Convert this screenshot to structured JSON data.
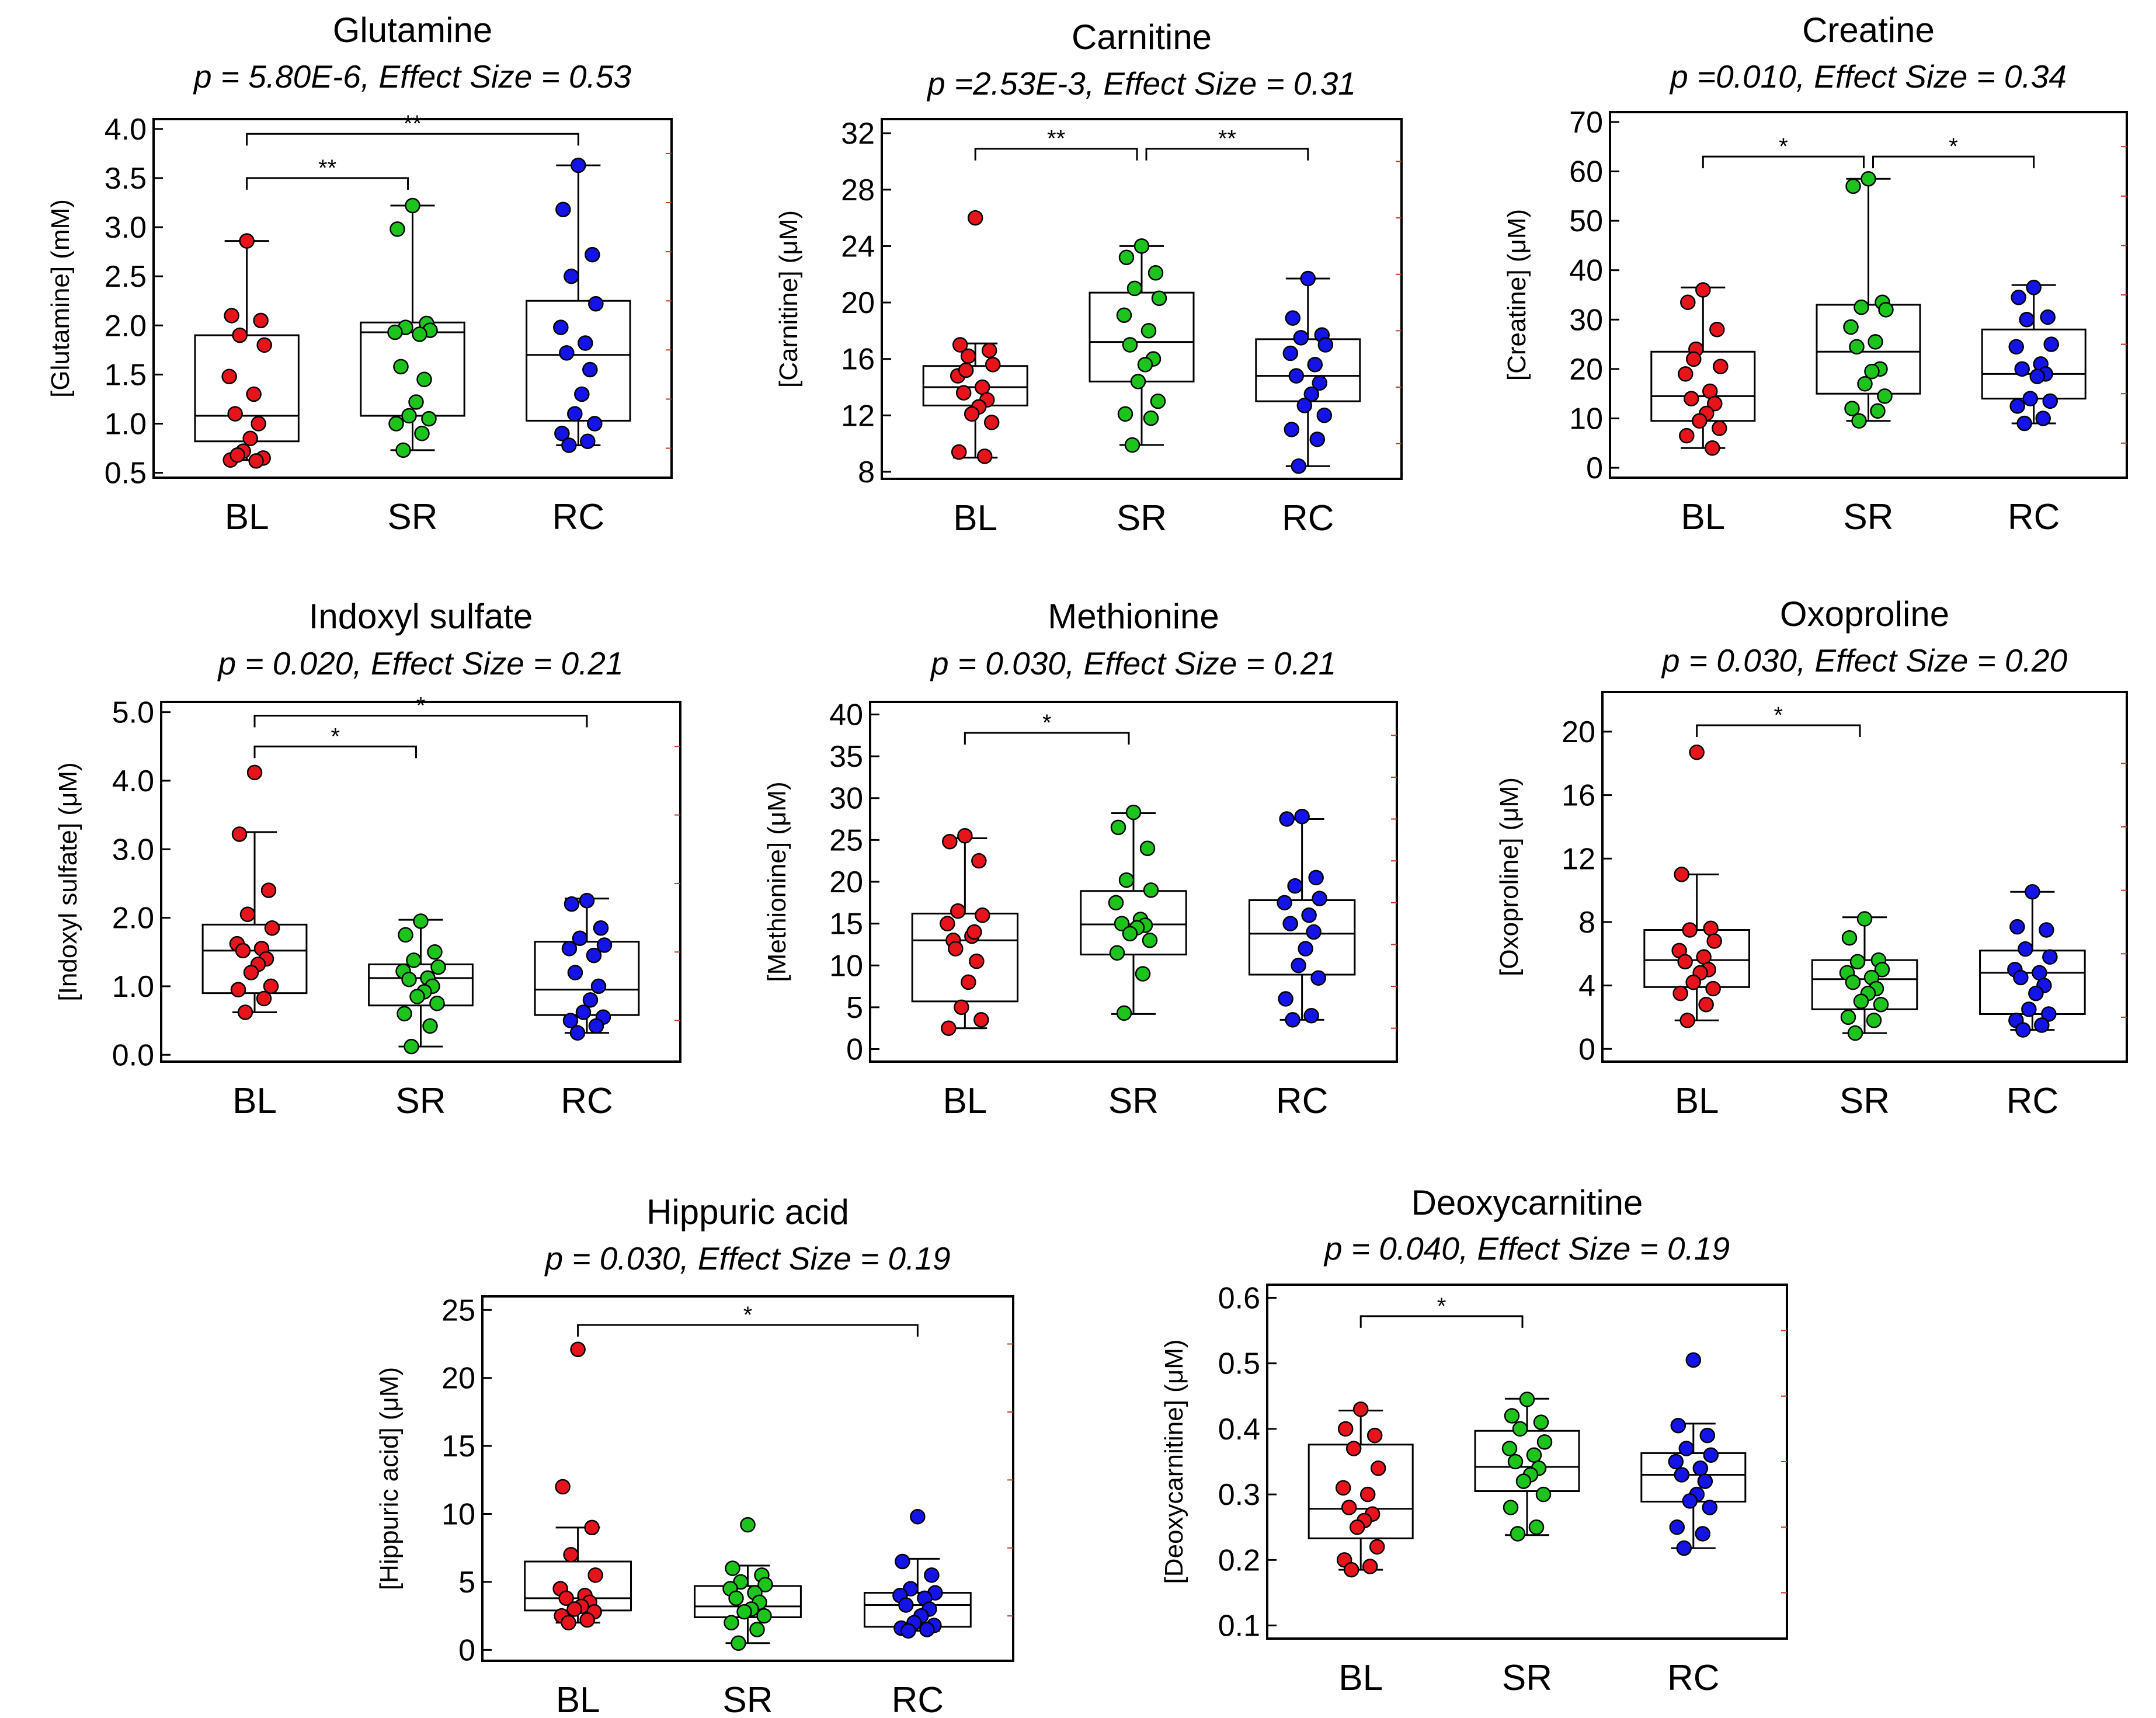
{
  "colors": {
    "BL": "#e8141c",
    "SR": "#1cc41c",
    "RC": "#1414e8"
  },
  "chart_data": [
    {
      "type": "box",
      "title": "Glutamine",
      "subtitle": "p = 5.80E-6, Effect Size = 0.53",
      "ylabel": "[Glutamine] (mM)",
      "categories": [
        "BL",
        "SR",
        "RC"
      ],
      "ylim": [
        0.45,
        4.1
      ],
      "yticks": [
        0.5,
        1.0,
        1.5,
        2.0,
        2.5,
        3.0,
        3.5,
        4.0
      ],
      "ytick_labels": [
        "0.5",
        "1.0",
        "1.5",
        "2.0",
        "2.5",
        "3.0",
        "3.5",
        "4.0"
      ],
      "boxes": [
        {
          "min": 0.63,
          "q1": 0.82,
          "median": 1.08,
          "q3": 1.9,
          "max": 2.86
        },
        {
          "min": 0.73,
          "q1": 1.08,
          "median": 1.93,
          "q3": 2.03,
          "max": 3.22
        },
        {
          "min": 0.78,
          "q1": 1.03,
          "median": 1.7,
          "q3": 2.25,
          "max": 3.63
        }
      ],
      "points": [
        [
          2.86,
          2.1,
          2.05,
          1.9,
          1.8,
          1.48,
          1.3,
          1.1,
          1.0,
          0.85,
          0.72,
          0.65,
          0.63,
          0.62,
          0.68
        ],
        [
          3.22,
          2.98,
          2.02,
          1.98,
          1.95,
          1.93,
          1.91,
          1.58,
          1.45,
          1.22,
          1.08,
          1.05,
          1.0,
          0.9,
          0.73
        ],
        [
          3.63,
          3.18,
          2.72,
          2.5,
          2.22,
          1.98,
          1.82,
          1.72,
          1.55,
          1.3,
          1.1,
          1.0,
          0.9,
          0.82,
          0.78
        ]
      ],
      "brackets": [
        {
          "from": 0,
          "to": 1,
          "label": "**",
          "y": 3.5
        },
        {
          "from": 0,
          "to": 2,
          "label": "**",
          "y": 3.95
        }
      ]
    },
    {
      "type": "box",
      "title": "Carnitine",
      "subtitle": "p =2.53E-3, Effect Size = 0.31",
      "ylabel": "[Carnitine] (μM)",
      "categories": [
        "BL",
        "SR",
        "RC"
      ],
      "ylim": [
        7.5,
        33.0
      ],
      "yticks": [
        8,
        12,
        16,
        20,
        24,
        28,
        32
      ],
      "ytick_labels": [
        "8",
        "12",
        "16",
        "20",
        "24",
        "28",
        "32"
      ],
      "boxes": [
        {
          "min": 9.0,
          "q1": 12.7,
          "median": 14.0,
          "q3": 15.5,
          "max": 17.1
        },
        {
          "min": 9.9,
          "q1": 14.4,
          "median": 17.2,
          "q3": 20.7,
          "max": 24.0
        },
        {
          "min": 8.4,
          "q1": 13.0,
          "median": 14.8,
          "q3": 17.4,
          "max": 21.7
        }
      ],
      "points": [
        [
          26.0,
          17.0,
          16.6,
          16.2,
          15.6,
          14.8,
          14.0,
          13.6,
          13.1,
          12.6,
          12.1,
          11.5,
          9.4,
          9.1,
          15.2
        ],
        [
          24.0,
          23.2,
          22.1,
          21.0,
          20.3,
          19.1,
          18.0,
          17.0,
          16.0,
          15.6,
          14.4,
          13.0,
          12.1,
          11.8,
          9.9
        ],
        [
          21.7,
          18.9,
          17.7,
          17.5,
          17.0,
          16.4,
          15.6,
          14.8,
          14.3,
          13.5,
          12.7,
          12.0,
          11.0,
          10.3,
          8.4
        ]
      ],
      "brackets": [
        {
          "from": 0,
          "to": 1,
          "label": "**",
          "y": 30.9
        },
        {
          "from": 1,
          "to": 2,
          "label": "**",
          "y": 30.9
        }
      ]
    },
    {
      "type": "box",
      "title": "Creatine",
      "subtitle": "p =0.010, Effect Size = 0.34",
      "ylabel": "[Creatine] (μM)",
      "categories": [
        "BL",
        "SR",
        "RC"
      ],
      "ylim": [
        -2,
        72
      ],
      "yticks": [
        0,
        10,
        20,
        30,
        40,
        50,
        60,
        70
      ],
      "ytick_labels": [
        "0",
        "10",
        "20",
        "30",
        "40",
        "50",
        "60",
        "70"
      ],
      "boxes": [
        {
          "min": 4.0,
          "q1": 9.5,
          "median": 14.5,
          "q3": 23.5,
          "max": 36.5
        },
        {
          "min": 9.5,
          "q1": 15.0,
          "median": 23.5,
          "q3": 33.0,
          "max": 58.5
        },
        {
          "min": 9.0,
          "q1": 14.0,
          "median": 19.0,
          "q3": 28.0,
          "max": 37.0
        }
      ],
      "points": [
        [
          36.0,
          33.5,
          28.0,
          24.0,
          20.5,
          19.0,
          15.5,
          14.0,
          13.0,
          11.0,
          9.5,
          8.0,
          6.5,
          4.0,
          22.0
        ],
        [
          58.5,
          57.0,
          33.5,
          32.5,
          32.0,
          28.5,
          25.5,
          24.5,
          20.0,
          19.5,
          17.0,
          14.5,
          12.0,
          11.5,
          9.5
        ],
        [
          36.5,
          34.5,
          30.5,
          30.0,
          25.0,
          24.5,
          21.0,
          20.0,
          19.0,
          18.5,
          14.0,
          13.5,
          12.5,
          10.0,
          9.0
        ]
      ],
      "brackets": [
        {
          "from": 0,
          "to": 1,
          "label": "*",
          "y": 63.0
        },
        {
          "from": 1,
          "to": 2,
          "label": "*",
          "y": 63.0
        }
      ]
    },
    {
      "type": "box",
      "title": "Indoxyl sulfate",
      "subtitle": "p = 0.020, Effect Size = 0.21",
      "ylabel": "[Indoxyl sulfate] (μM)",
      "categories": [
        "BL",
        "SR",
        "RC"
      ],
      "ylim": [
        -0.1,
        5.15
      ],
      "yticks": [
        0.0,
        1.0,
        2.0,
        3.0,
        4.0,
        5.0
      ],
      "ytick_labels": [
        "0.0",
        "1.0",
        "2.0",
        "3.0",
        "4.0",
        "5.0"
      ],
      "boxes": [
        {
          "min": 0.62,
          "q1": 0.9,
          "median": 1.52,
          "q3": 1.9,
          "max": 3.25
        },
        {
          "min": 0.12,
          "q1": 0.72,
          "median": 1.12,
          "q3": 1.32,
          "max": 1.97
        },
        {
          "min": 0.32,
          "q1": 0.58,
          "median": 0.95,
          "q3": 1.65,
          "max": 2.28
        }
      ],
      "points": [
        [
          4.12,
          3.22,
          2.4,
          2.05,
          1.85,
          1.62,
          1.55,
          1.52,
          1.4,
          1.32,
          1.2,
          1.0,
          0.95,
          0.82,
          0.62
        ],
        [
          1.95,
          1.75,
          1.5,
          1.38,
          1.28,
          1.22,
          1.12,
          1.1,
          1.0,
          0.92,
          0.85,
          0.75,
          0.6,
          0.42,
          0.12
        ],
        [
          2.25,
          2.2,
          1.85,
          1.7,
          1.6,
          1.55,
          1.45,
          1.2,
          1.0,
          0.8,
          0.62,
          0.55,
          0.5,
          0.42,
          0.32
        ]
      ],
      "brackets": [
        {
          "from": 0,
          "to": 1,
          "label": "*",
          "y": 4.5
        },
        {
          "from": 0,
          "to": 2,
          "label": "*",
          "y": 4.95
        }
      ]
    },
    {
      "type": "box",
      "title": "Methionine",
      "subtitle": "p = 0.030, Effect Size = 0.21",
      "ylabel": "[Methionine] (μM)",
      "categories": [
        "BL",
        "SR",
        "RC"
      ],
      "ylim": [
        -1.5,
        41.5
      ],
      "yticks": [
        0,
        5,
        10,
        15,
        20,
        25,
        30,
        35,
        40
      ],
      "ytick_labels": [
        "0",
        "5",
        "10",
        "15",
        "20",
        "25",
        "30",
        "35",
        "40"
      ],
      "boxes": [
        {
          "min": 2.5,
          "q1": 5.7,
          "median": 13.0,
          "q3": 16.2,
          "max": 25.2
        },
        {
          "min": 4.2,
          "q1": 11.3,
          "median": 14.9,
          "q3": 18.9,
          "max": 28.2
        },
        {
          "min": 3.5,
          "q1": 8.9,
          "median": 13.8,
          "q3": 17.8,
          "max": 27.5
        }
      ],
      "points": [
        [
          25.5,
          24.8,
          22.5,
          16.5,
          16.0,
          15.0,
          13.5,
          13.0,
          10.5,
          8.0,
          5.0,
          3.5,
          2.5,
          14.0,
          12.0
        ],
        [
          28.3,
          26.5,
          24.0,
          20.2,
          19.0,
          17.5,
          15.5,
          15.0,
          14.8,
          14.5,
          13.8,
          13.0,
          11.5,
          9.0,
          4.3
        ],
        [
          27.8,
          27.5,
          20.5,
          19.5,
          18.0,
          17.5,
          16.0,
          15.0,
          14.0,
          12.0,
          10.0,
          8.5,
          6.0,
          4.0,
          3.5
        ]
      ],
      "brackets": [
        {
          "from": 0,
          "to": 1,
          "label": "*",
          "y": 37.8
        }
      ]
    },
    {
      "type": "box",
      "title": "Oxoproline",
      "subtitle": "p = 0.030, Effect Size = 0.20",
      "ylabel": "[Oxoproline] (μM)",
      "categories": [
        "BL",
        "SR",
        "RC"
      ],
      "ylim": [
        -0.8,
        22.5
      ],
      "yticks": [
        0,
        4,
        8,
        12,
        16,
        20
      ],
      "ytick_labels": [
        "0",
        "4",
        "8",
        "12",
        "16",
        "20"
      ],
      "boxes": [
        {
          "min": 1.8,
          "q1": 3.9,
          "median": 5.6,
          "q3": 7.5,
          "max": 11.0
        },
        {
          "min": 1.0,
          "q1": 2.5,
          "median": 4.4,
          "q3": 5.6,
          "max": 8.3
        },
        {
          "min": 1.2,
          "q1": 2.2,
          "median": 4.8,
          "q3": 6.2,
          "max": 9.9
        }
      ],
      "points": [
        [
          18.7,
          11.0,
          7.6,
          7.5,
          6.8,
          6.2,
          5.8,
          5.5,
          5.0,
          4.8,
          4.2,
          3.8,
          3.5,
          2.8,
          1.8
        ],
        [
          8.2,
          7.0,
          5.6,
          5.5,
          5.0,
          4.8,
          4.5,
          4.2,
          3.8,
          3.5,
          3.0,
          2.8,
          2.0,
          1.8,
          1.0
        ],
        [
          9.9,
          7.7,
          7.5,
          6.3,
          5.8,
          5.0,
          4.8,
          4.5,
          4.0,
          3.5,
          2.5,
          2.2,
          1.8,
          1.5,
          1.2
        ]
      ],
      "brackets": [
        {
          "from": 0,
          "to": 1,
          "label": "*",
          "y": 20.4
        }
      ]
    },
    {
      "type": "box",
      "title": "Hippuric acid",
      "subtitle": "p = 0.030, Effect Size = 0.19",
      "ylabel": "[Hippuric acid] (μM)",
      "categories": [
        "BL",
        "SR",
        "RC"
      ],
      "ylim": [
        -0.8,
        26.0
      ],
      "yticks": [
        0,
        5,
        10,
        15,
        20,
        25
      ],
      "ytick_labels": [
        "0",
        "5",
        "10",
        "15",
        "20",
        "25"
      ],
      "boxes": [
        {
          "min": 2.0,
          "q1": 2.9,
          "median": 3.8,
          "q3": 6.5,
          "max": 9.0
        },
        {
          "min": 0.5,
          "q1": 2.4,
          "median": 3.2,
          "q3": 4.7,
          "max": 6.2
        },
        {
          "min": 1.4,
          "q1": 1.7,
          "median": 3.3,
          "q3": 4.2,
          "max": 6.7
        }
      ],
      "points": [
        [
          22.1,
          12.0,
          9.0,
          7.0,
          5.5,
          4.5,
          4.0,
          3.8,
          3.5,
          3.2,
          3.0,
          2.8,
          2.5,
          2.2,
          2.0
        ],
        [
          9.2,
          6.0,
          5.5,
          5.0,
          4.8,
          4.5,
          4.2,
          3.8,
          3.5,
          3.0,
          2.8,
          2.5,
          2.0,
          1.5,
          0.5
        ],
        [
          9.8,
          6.5,
          5.5,
          4.5,
          4.2,
          4.0,
          3.8,
          3.3,
          3.0,
          2.5,
          2.0,
          1.8,
          1.6,
          1.5,
          1.4
        ]
      ],
      "brackets": [
        {
          "from": 0,
          "to": 2,
          "label": "*",
          "y": 23.9
        }
      ]
    },
    {
      "type": "box",
      "title": "Deoxycarnitine",
      "subtitle": "p = 0.040, Effect Size = 0.19",
      "ylabel": "[Deoxycarnitine] (μM)",
      "categories": [
        "BL",
        "SR",
        "RC"
      ],
      "ylim": [
        0.08,
        0.62
      ],
      "yticks": [
        0.1,
        0.2,
        0.3,
        0.4,
        0.5,
        0.6
      ],
      "ytick_labels": [
        "0.1",
        "0.2",
        "0.3",
        "0.4",
        "0.5",
        "0.6"
      ],
      "boxes": [
        {
          "min": 0.185,
          "q1": 0.233,
          "median": 0.278,
          "q3": 0.376,
          "max": 0.428
        },
        {
          "min": 0.238,
          "q1": 0.305,
          "median": 0.342,
          "q3": 0.397,
          "max": 0.446
        },
        {
          "min": 0.218,
          "q1": 0.289,
          "median": 0.33,
          "q3": 0.363,
          "max": 0.408
        }
      ],
      "points": [
        [
          0.43,
          0.4,
          0.39,
          0.37,
          0.34,
          0.31,
          0.3,
          0.28,
          0.27,
          0.26,
          0.25,
          0.22,
          0.2,
          0.19,
          0.185
        ],
        [
          0.445,
          0.42,
          0.41,
          0.4,
          0.38,
          0.37,
          0.36,
          0.35,
          0.34,
          0.33,
          0.32,
          0.3,
          0.28,
          0.25,
          0.24
        ],
        [
          0.505,
          0.405,
          0.39,
          0.37,
          0.36,
          0.35,
          0.34,
          0.33,
          0.32,
          0.3,
          0.29,
          0.28,
          0.25,
          0.24,
          0.218
        ]
      ],
      "brackets": [
        {
          "from": 0,
          "to": 1,
          "label": "*",
          "y": 0.572
        }
      ]
    }
  ]
}
